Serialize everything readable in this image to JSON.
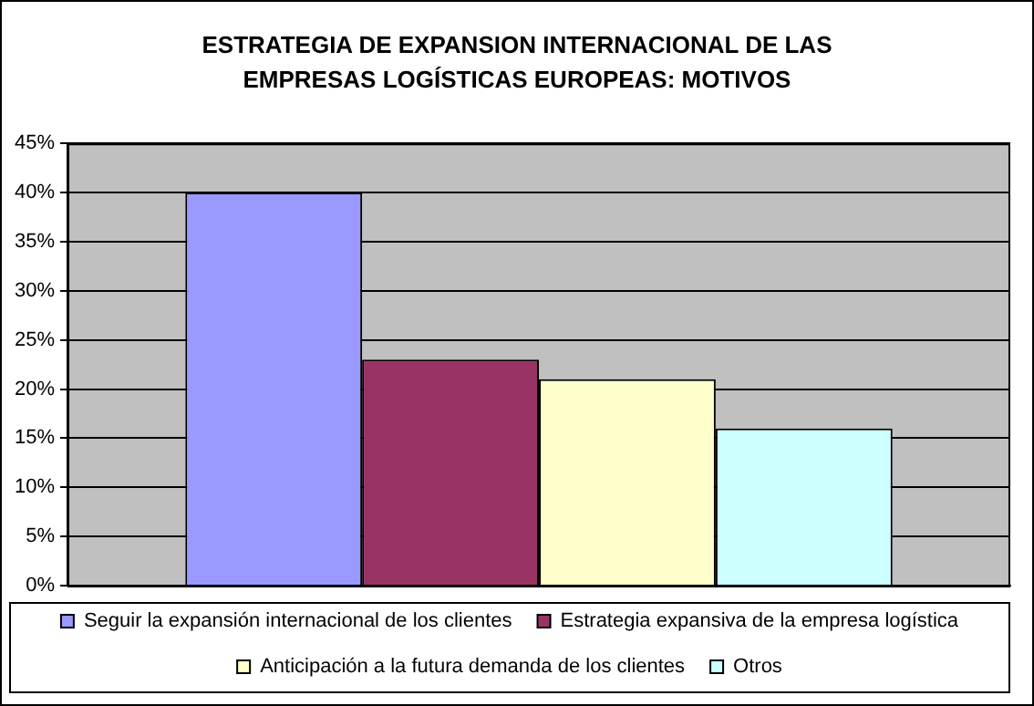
{
  "chart_data": {
    "type": "bar",
    "title": "ESTRATEGIA DE EXPANSION INTERNACIONAL DE LAS EMPRESAS LOGÍSTICAS EUROPEAS: MOTIVOS",
    "categories": [
      null
    ],
    "series": [
      {
        "name": "Seguir la expansión internacional de los clientes",
        "color": "#9999ff",
        "values": [
          40
        ]
      },
      {
        "name": "Estrategia expansiva de la empresa logística",
        "color": "#993366",
        "values": [
          23
        ]
      },
      {
        "name": "Anticipación a la futura demanda de los clientes",
        "color": "#ffffcc",
        "values": [
          21
        ]
      },
      {
        "name": "Otros",
        "color": "#ccffff",
        "values": [
          16
        ]
      }
    ],
    "ylim": [
      0,
      45
    ],
    "yticks": [
      {
        "value": 0,
        "label": "0%"
      },
      {
        "value": 5,
        "label": "5%"
      },
      {
        "value": 10,
        "label": "10%"
      },
      {
        "value": 15,
        "label": "15%"
      },
      {
        "value": 20,
        "label": "20%"
      },
      {
        "value": 25,
        "label": "25%"
      },
      {
        "value": 30,
        "label": "30%"
      },
      {
        "value": 35,
        "label": "35%"
      },
      {
        "value": 40,
        "label": "40%"
      },
      {
        "value": 45,
        "label": "45%"
      }
    ],
    "grid": "y",
    "legend": "bottom"
  }
}
